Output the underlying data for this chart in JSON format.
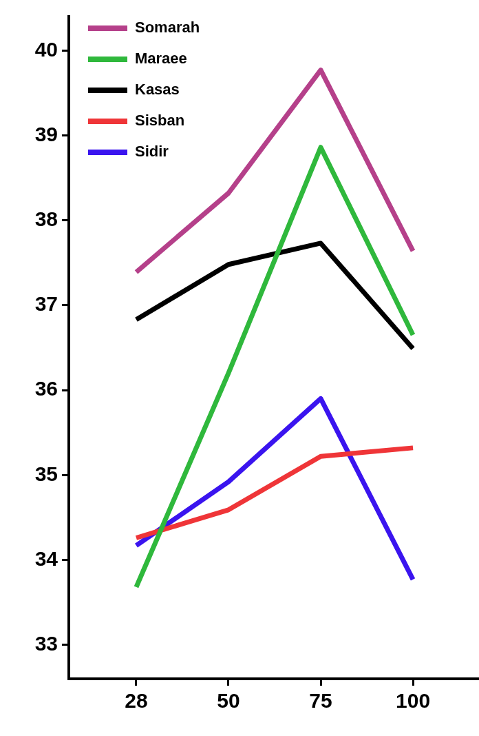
{
  "chart_data": {
    "type": "line",
    "categories": [
      "28",
      "50",
      "75",
      "100"
    ],
    "series": [
      {
        "name": "Somarah",
        "color": "#b5408a",
        "values": [
          37.39,
          38.32,
          39.77,
          37.64
        ]
      },
      {
        "name": "Maraee",
        "color": "#2fb83c",
        "values": [
          33.68,
          36.2,
          38.86,
          36.65
        ]
      },
      {
        "name": "Kasas",
        "color": "#000000",
        "values": [
          36.83,
          37.48,
          37.73,
          36.49
        ]
      },
      {
        "name": "Sisban",
        "color": "#ef3538",
        "values": [
          34.26,
          34.59,
          35.22,
          35.32
        ]
      },
      {
        "name": "Sidir",
        "color": "#3a14ef",
        "values": [
          34.17,
          34.92,
          35.9,
          33.77
        ]
      }
    ],
    "ylim": [
      32.6,
      40.4
    ],
    "yticks": [
      33,
      34,
      35,
      36,
      37,
      38,
      39,
      40
    ],
    "grid": false,
    "legend": "top left",
    "marker": "none",
    "line_style": "solid"
  }
}
